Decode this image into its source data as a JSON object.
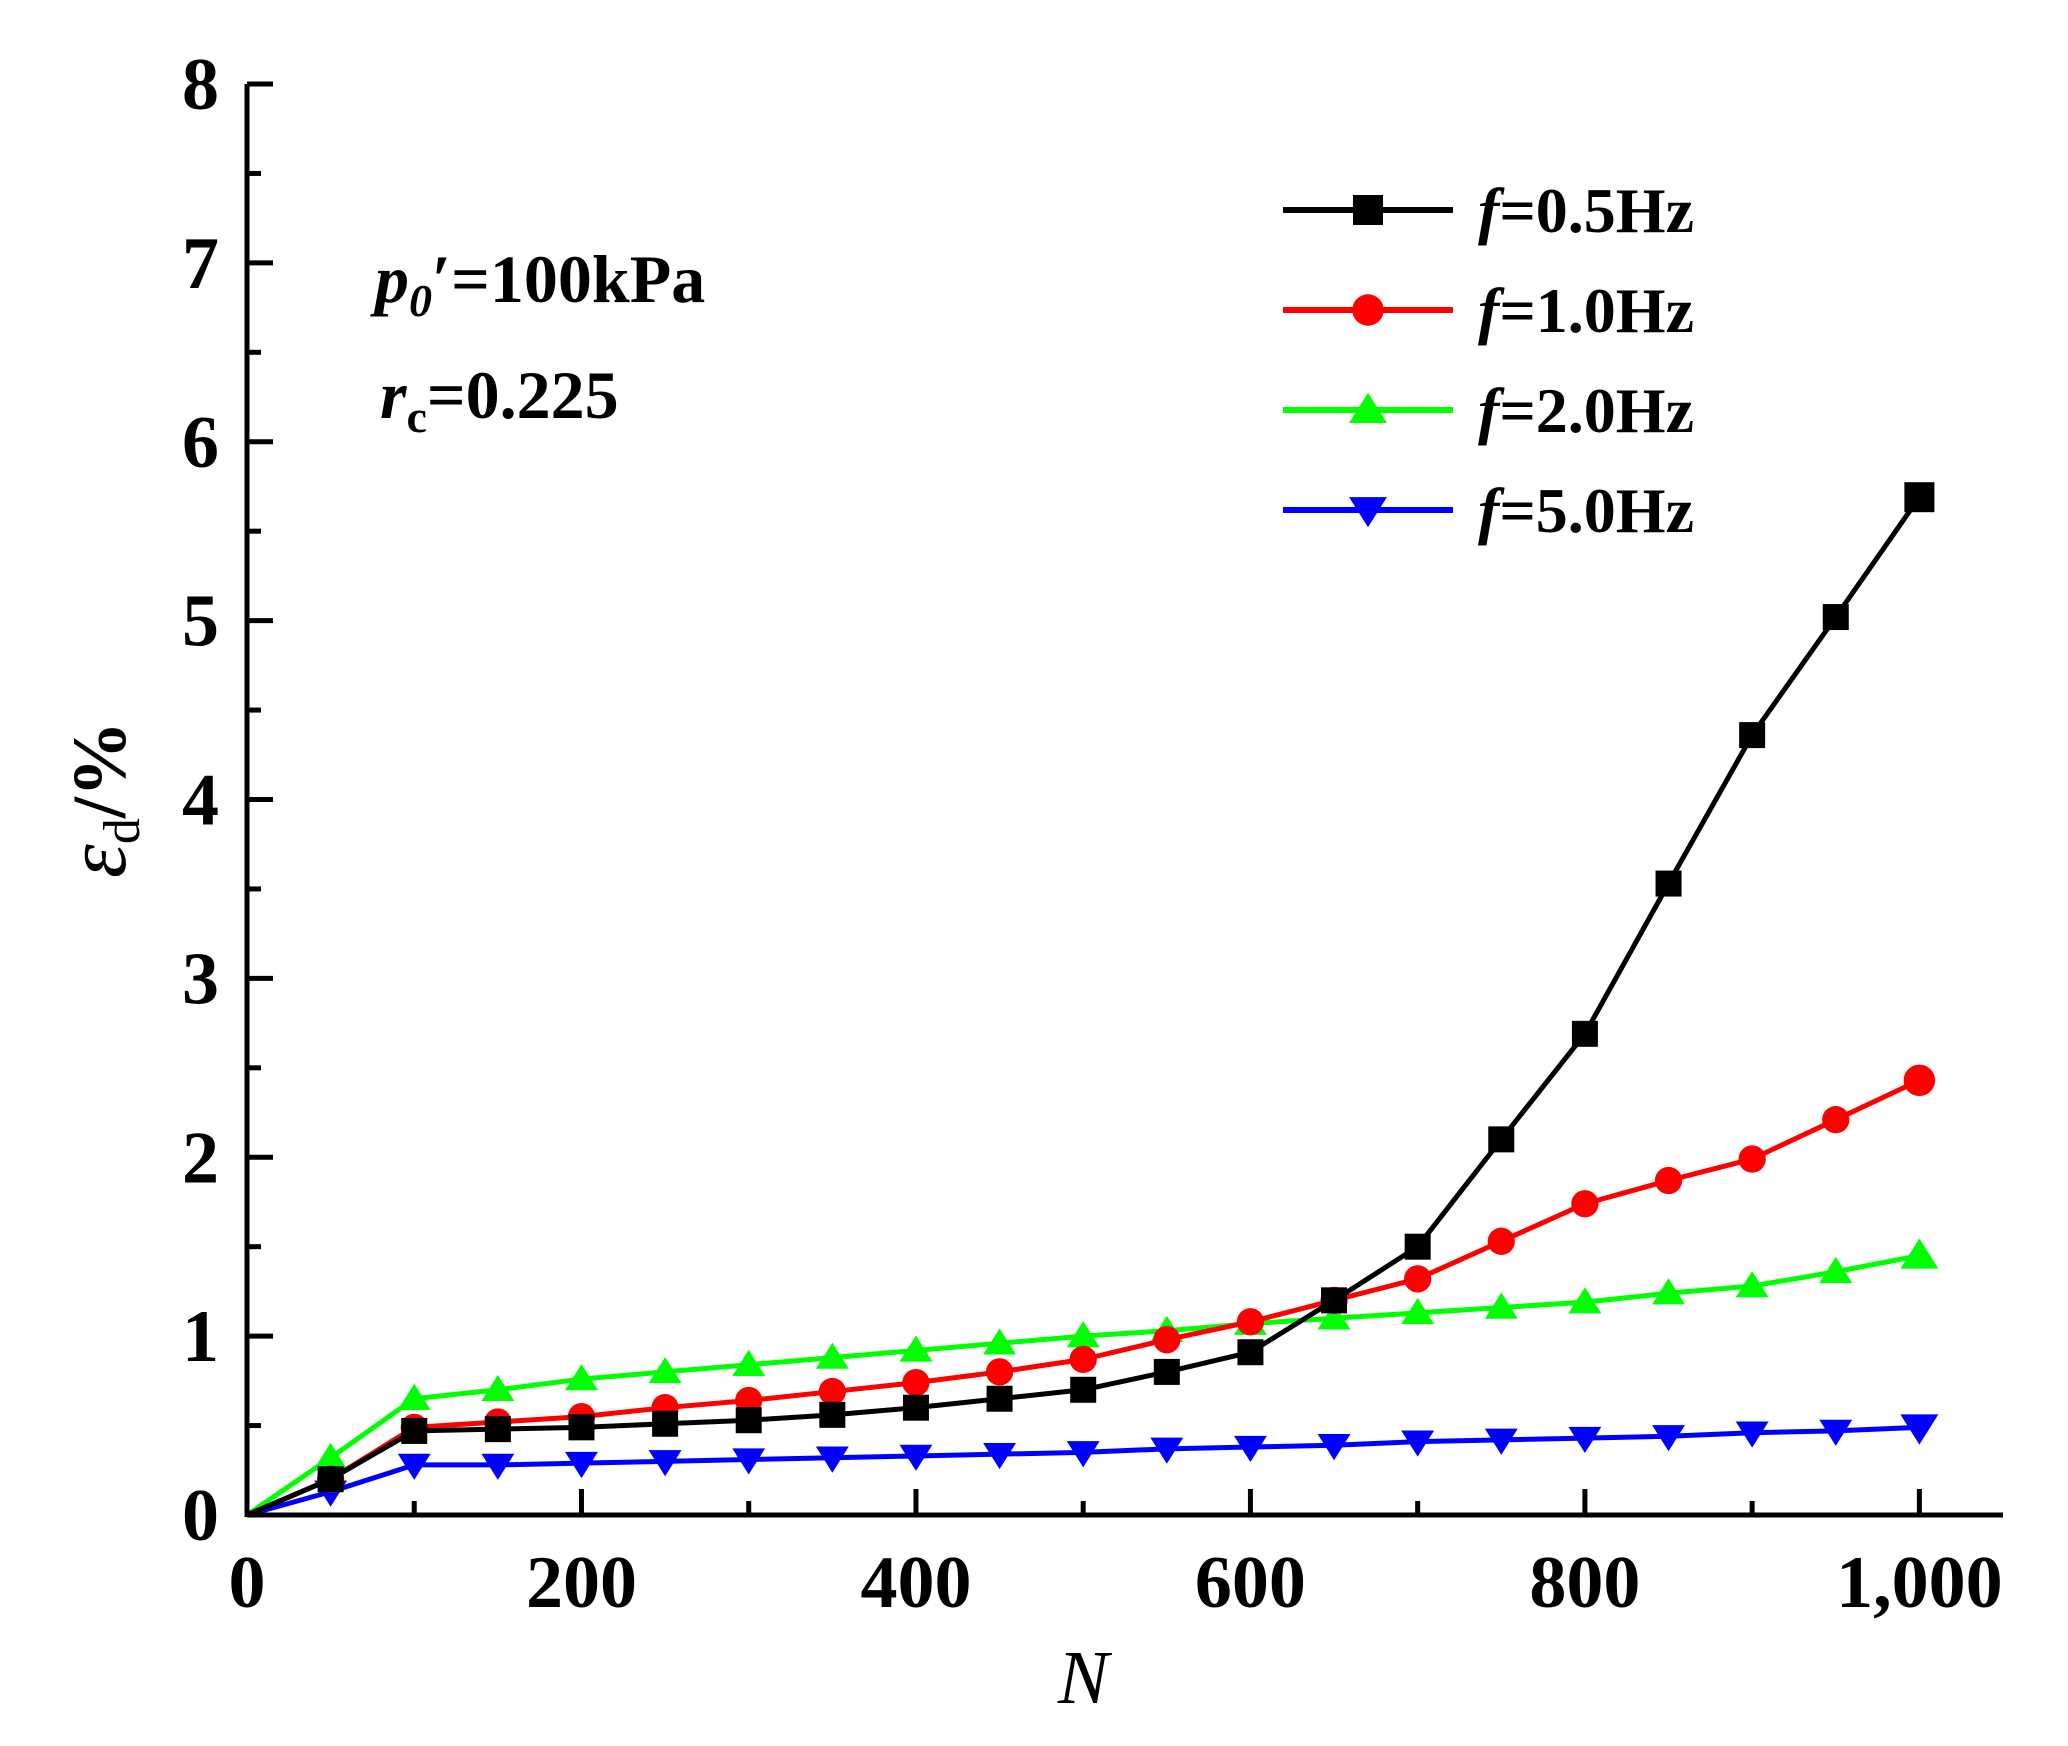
{
  "chart_data": {
    "type": "line",
    "title": "",
    "xlabel": "N",
    "ylabel": {
      "symbol": "ε",
      "subscript": "d",
      "unit": "/%"
    },
    "xlim": [
      0,
      1050
    ],
    "ylim": [
      0,
      8
    ],
    "xticks": [
      0,
      200,
      400,
      600,
      800,
      1000
    ],
    "xtick_labels": [
      "0",
      "200",
      "400",
      "600",
      "800",
      "1,000"
    ],
    "yticks": [
      0,
      1,
      2,
      3,
      4,
      5,
      6,
      7,
      8
    ],
    "ytick_labels": [
      "0",
      "1",
      "2",
      "3",
      "4",
      "5",
      "6",
      "7",
      "8"
    ],
    "grid": false,
    "legend_position": "top-right",
    "annotations": [
      {
        "main": "p",
        "sub": "0",
        "rest": "′=100kPa"
      },
      {
        "main": "r",
        "sub": "c",
        "rest": "=0.225"
      }
    ],
    "x": [
      0,
      50,
      100,
      150,
      200,
      250,
      300,
      350,
      400,
      450,
      500,
      550,
      600,
      650,
      700,
      750,
      800,
      850,
      900,
      950,
      1000
    ],
    "series": [
      {
        "name": "f=0.5Hz",
        "italic": "f",
        "rest": "=0.5Hz",
        "color": "#000000",
        "marker": "square",
        "values": [
          0,
          0.2,
          0.47,
          0.48,
          0.49,
          0.51,
          0.53,
          0.56,
          0.6,
          0.65,
          0.7,
          0.8,
          0.91,
          1.2,
          1.5,
          2.1,
          2.69,
          3.53,
          4.36,
          5.02,
          5.69
        ]
      },
      {
        "name": "f=1.0Hz",
        "italic": "f",
        "rest": "=1.0Hz",
        "color": "#ff0000",
        "marker": "circle",
        "values": [
          0,
          0.2,
          0.49,
          0.52,
          0.55,
          0.6,
          0.64,
          0.69,
          0.74,
          0.8,
          0.87,
          0.98,
          1.08,
          1.2,
          1.32,
          1.53,
          1.74,
          1.87,
          1.99,
          2.21,
          2.43
        ]
      },
      {
        "name": "f=2.0Hz",
        "italic": "f",
        "rest": "=2.0Hz",
        "color": "#00ff00",
        "marker": "triangle-up",
        "values": [
          0,
          0.32,
          0.65,
          0.7,
          0.76,
          0.8,
          0.84,
          0.88,
          0.92,
          0.96,
          1.0,
          1.03,
          1.07,
          1.1,
          1.13,
          1.16,
          1.19,
          1.24,
          1.28,
          1.36,
          1.45
        ]
      },
      {
        "name": "f=5.0Hz",
        "italic": "f",
        "rest": "=5.0Hz",
        "color": "#0000ff",
        "marker": "triangle-down",
        "values": [
          0,
          0.13,
          0.28,
          0.28,
          0.29,
          0.3,
          0.31,
          0.32,
          0.33,
          0.34,
          0.35,
          0.37,
          0.38,
          0.39,
          0.41,
          0.42,
          0.43,
          0.44,
          0.46,
          0.47,
          0.49
        ]
      }
    ]
  }
}
